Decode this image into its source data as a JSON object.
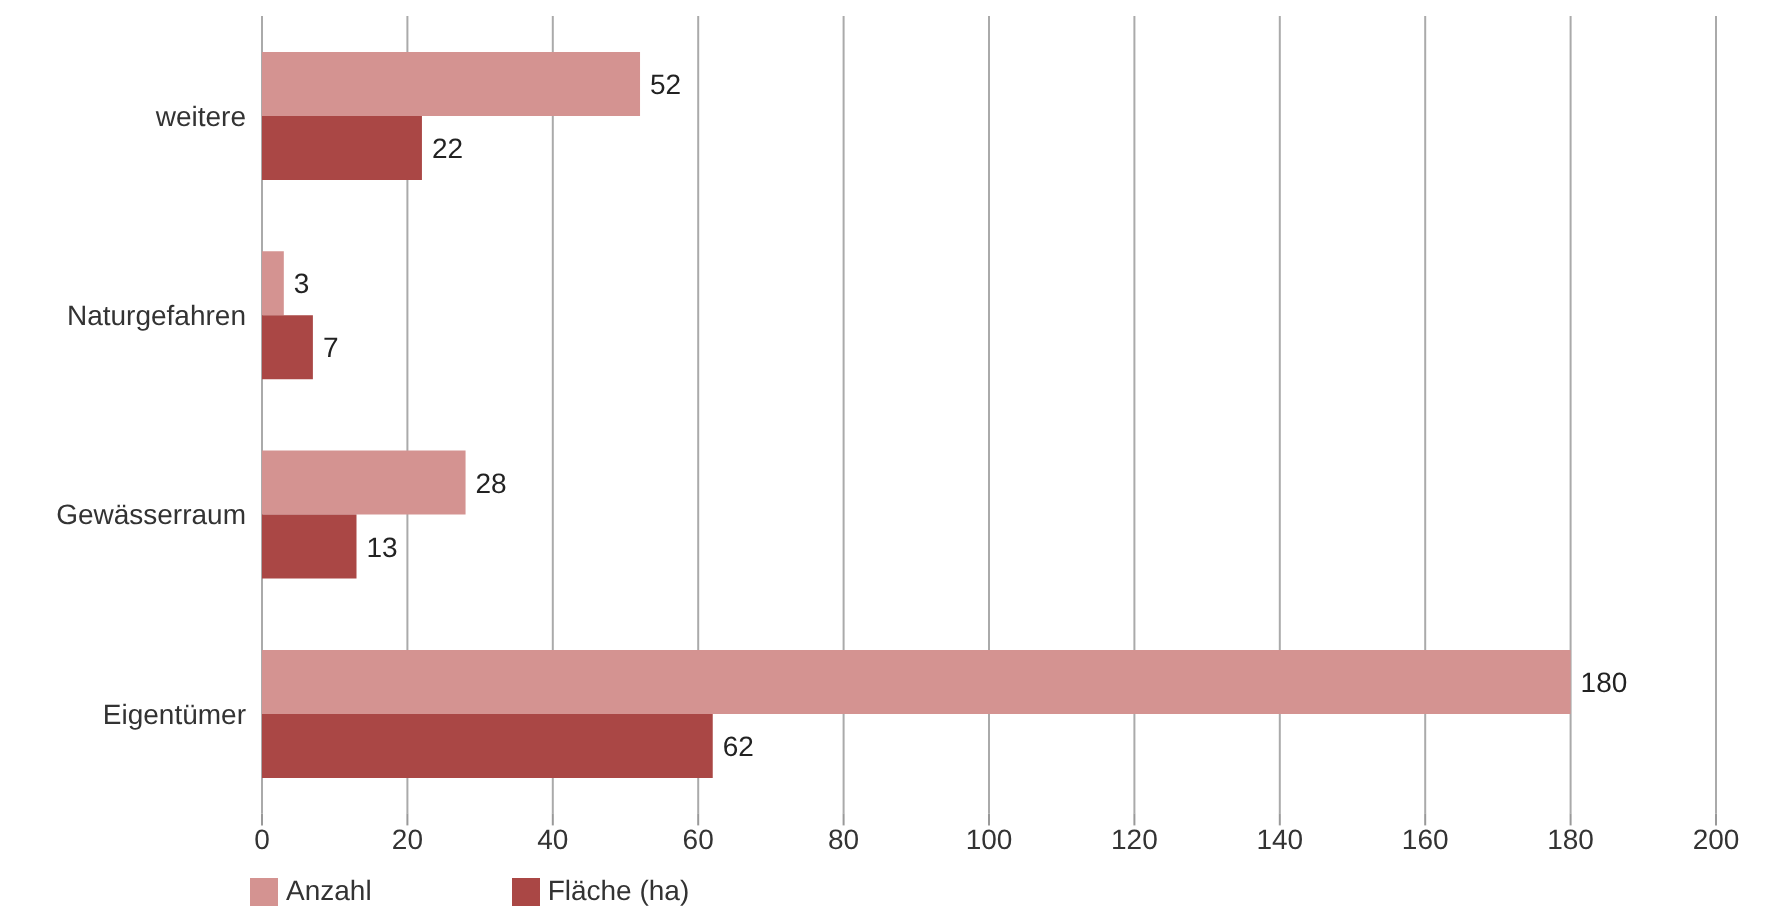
{
  "chart_data": {
    "type": "bar",
    "orientation": "horizontal",
    "categories": [
      "weitere",
      "Naturgefahren",
      "Gewässerraum",
      "Eigentümer"
    ],
    "series": [
      {
        "name": "Anzahl",
        "color": "#d49391",
        "values": [
          52,
          3,
          28,
          180
        ]
      },
      {
        "name": "Fläche (ha)",
        "color": "#aa4745",
        "values": [
          22,
          7,
          13,
          62
        ]
      }
    ],
    "xlim": [
      0,
      200
    ],
    "xticks": [
      0,
      20,
      40,
      60,
      80,
      100,
      120,
      140,
      160,
      180,
      200
    ],
    "grid": "x",
    "legend": "bottom left",
    "data_labels": true
  }
}
